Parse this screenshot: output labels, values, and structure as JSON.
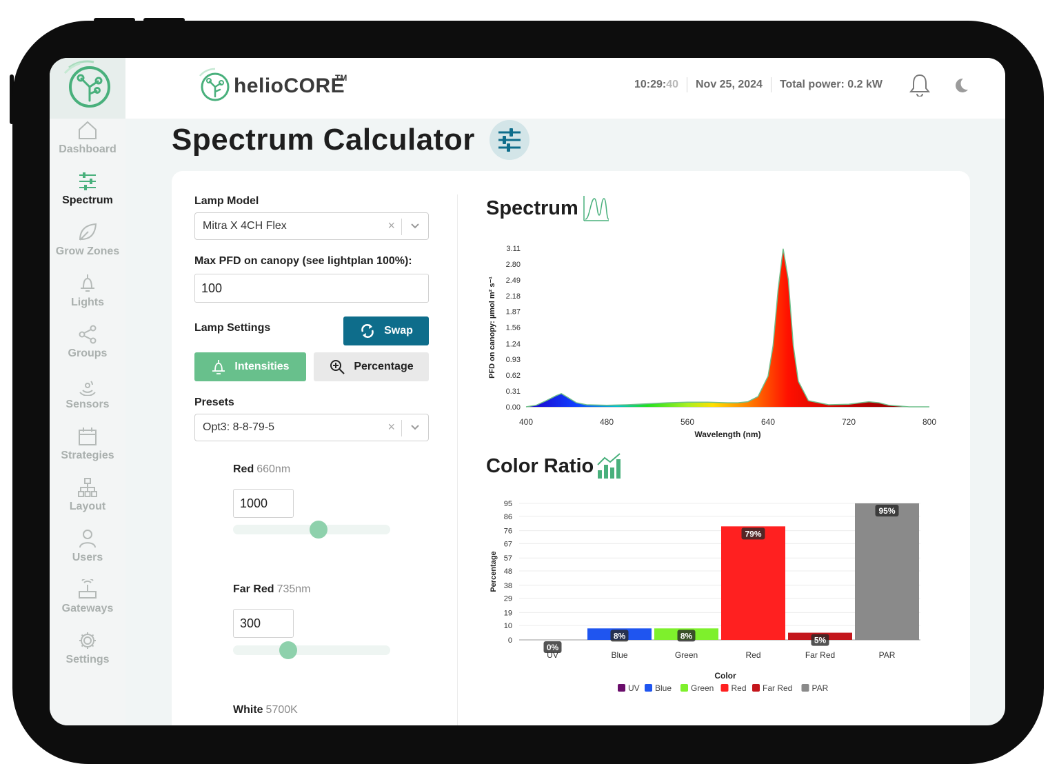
{
  "brand": {
    "name": "helioCORE",
    "tm": "TM"
  },
  "header": {
    "time_hm": "10:29:",
    "time_s": "40",
    "date": "Nov 25, 2024",
    "power": "Total power: 0.2 kW"
  },
  "sidebar": {
    "items": [
      {
        "label": "Dashboard",
        "icon": "home-icon"
      },
      {
        "label": "Spectrum",
        "icon": "sliders-icon",
        "active": true
      },
      {
        "label": "Grow Zones",
        "icon": "leaf-icon"
      },
      {
        "label": "Lights",
        "icon": "lamp-icon"
      },
      {
        "label": "Groups",
        "icon": "share-icon"
      },
      {
        "label": "Sensors",
        "icon": "sensor-icon"
      },
      {
        "label": "Strategies",
        "icon": "calendar-icon"
      },
      {
        "label": "Layout",
        "icon": "sitemap-icon"
      },
      {
        "label": "Users",
        "icon": "user-icon"
      },
      {
        "label": "Gateways",
        "icon": "router-icon"
      },
      {
        "label": "Settings",
        "icon": "gear-icon"
      }
    ]
  },
  "page": {
    "title": "Spectrum Calculator"
  },
  "form": {
    "lamp_model_label": "Lamp Model",
    "lamp_model_value": "Mitra X 4CH Flex",
    "max_pfd_label": "Max PFD on canopy (see lightplan 100%):",
    "max_pfd_value": "100",
    "lamp_settings_label": "Lamp Settings",
    "swap_label": "Swap",
    "intensities_label": "Intensities",
    "percentage_label": "Percentage",
    "presets_label": "Presets",
    "presets_value": "Opt3: 8-8-79-5",
    "clear_glyph": "×",
    "channels": [
      {
        "name": "Red",
        "wavelength": "660nm",
        "value": "1000",
        "level": 0.55
      },
      {
        "name": "Far Red",
        "wavelength": "735nm",
        "value": "300",
        "level": 0.33
      },
      {
        "name": "White",
        "wavelength": "5700K"
      }
    ]
  },
  "spectrum": {
    "title": "Spectrum"
  },
  "color_ratio": {
    "title": "Color Ratio"
  },
  "chart_data": [
    {
      "type": "area",
      "ylabel": "PFD on canopy: µmol m² s⁻¹",
      "xlabel": "Wavelength (nm)",
      "x_ticks": [
        "400",
        "480",
        "560",
        "640",
        "720",
        "800"
      ],
      "y_ticks": [
        "3.11",
        "2.80",
        "2.49",
        "2.18",
        "1.87",
        "1.56",
        "1.24",
        "0.93",
        "0.62",
        "0.31",
        "0.00"
      ],
      "xlim": [
        400,
        800
      ],
      "ylim": [
        0,
        3.11
      ],
      "x": [
        400,
        410,
        420,
        430,
        435,
        440,
        450,
        460,
        480,
        500,
        520,
        540,
        560,
        580,
        600,
        610,
        620,
        630,
        640,
        645,
        650,
        655,
        660,
        665,
        670,
        680,
        700,
        720,
        740,
        750,
        760,
        780,
        800
      ],
      "y": [
        0.0,
        0.03,
        0.12,
        0.22,
        0.26,
        0.2,
        0.08,
        0.04,
        0.03,
        0.04,
        0.06,
        0.08,
        0.09,
        0.09,
        0.08,
        0.08,
        0.1,
        0.2,
        0.6,
        1.2,
        2.3,
        3.1,
        2.5,
        1.2,
        0.5,
        0.12,
        0.04,
        0.05,
        0.1,
        0.08,
        0.03,
        0.0,
        0.0
      ]
    },
    {
      "type": "bar",
      "xlabel": "Color",
      "ylabel": "Percentage",
      "categories": [
        "UV",
        "Blue",
        "Green",
        "Red",
        "Far Red",
        "PAR"
      ],
      "values": [
        0,
        8,
        8,
        79,
        5,
        95
      ],
      "labels": [
        "0%",
        "8%",
        "8%",
        "79%",
        "5%",
        "95%"
      ],
      "colors": [
        "#6a0d6b",
        "#1f55f0",
        "#7ef02c",
        "#ff2020",
        "#c4161c",
        "#8a8a8a"
      ],
      "y_ticks": [
        "95",
        "86",
        "76",
        "67",
        "57",
        "48",
        "38",
        "29",
        "19",
        "10",
        "0"
      ],
      "ylim": [
        0,
        95
      ],
      "legend": [
        "UV",
        "Blue",
        "Green",
        "Red",
        "Far Red",
        "PAR"
      ]
    }
  ]
}
